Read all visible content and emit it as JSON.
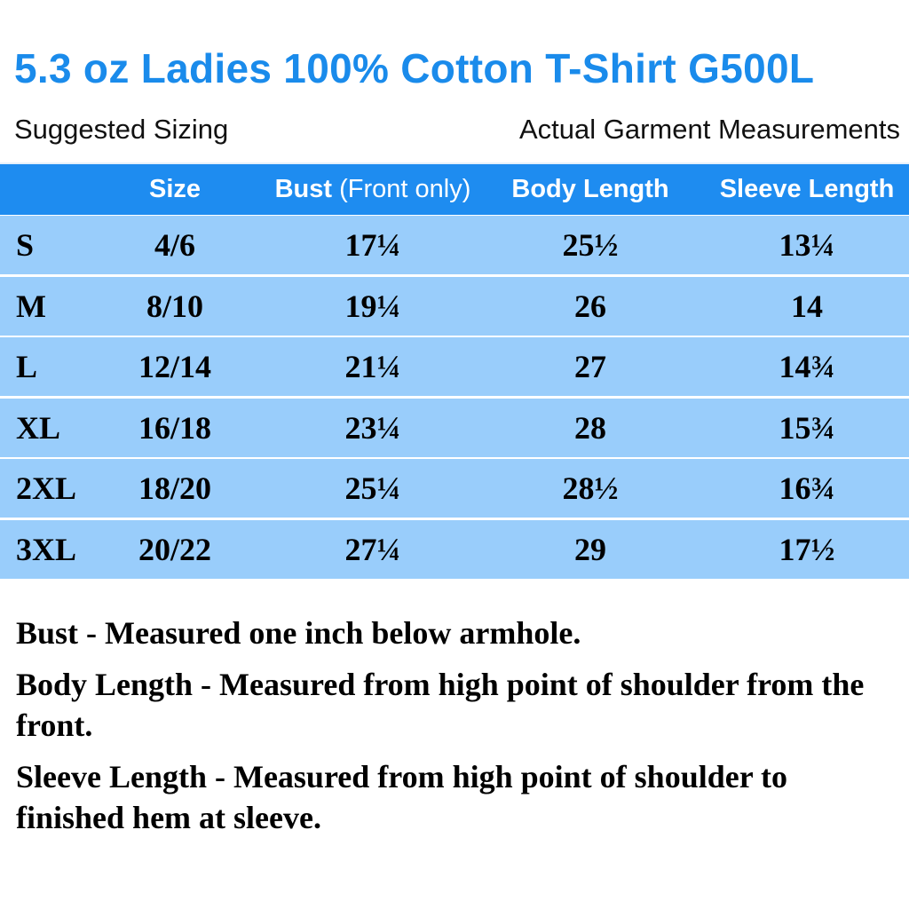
{
  "title": "5.3 oz Ladies 100% Cotton T-Shirt G500L",
  "subtitle_left": "Suggested Sizing",
  "subtitle_right": "Actual Garment Measurements",
  "colors": {
    "title": "#1a8beb",
    "header_bg": "#1e8cf0",
    "row_bg": "#99cdfb"
  },
  "headers": {
    "size": "Size",
    "bust": "Bust",
    "bust_note": "(Front only)",
    "body_length": "Body Length",
    "sleeve_length": "Sleeve Length"
  },
  "rows": [
    {
      "label": "S",
      "size": "4/6",
      "bust": "17¼",
      "body_length": "25½",
      "sleeve_length": "13¼"
    },
    {
      "label": "M",
      "size": "8/10",
      "bust": "19¼",
      "body_length": "26",
      "sleeve_length": "14"
    },
    {
      "label": "L",
      "size": "12/14",
      "bust": "21¼",
      "body_length": "27",
      "sleeve_length": "14¾"
    },
    {
      "label": "XL",
      "size": "16/18",
      "bust": "23¼",
      "body_length": "28",
      "sleeve_length": "15¾"
    },
    {
      "label": "2XL",
      "size": "18/20",
      "bust": "25¼",
      "body_length": "28½",
      "sleeve_length": "16¾"
    },
    {
      "label": "3XL",
      "size": "20/22",
      "bust": "27¼",
      "body_length": "29",
      "sleeve_length": "17½"
    }
  ],
  "notes": [
    "Bust - Measured one inch below armhole.",
    "Body Length - Measured from high point of shoulder from the front.",
    "Sleeve Length - Measured from high point of shoulder to finished hem at sleeve."
  ]
}
